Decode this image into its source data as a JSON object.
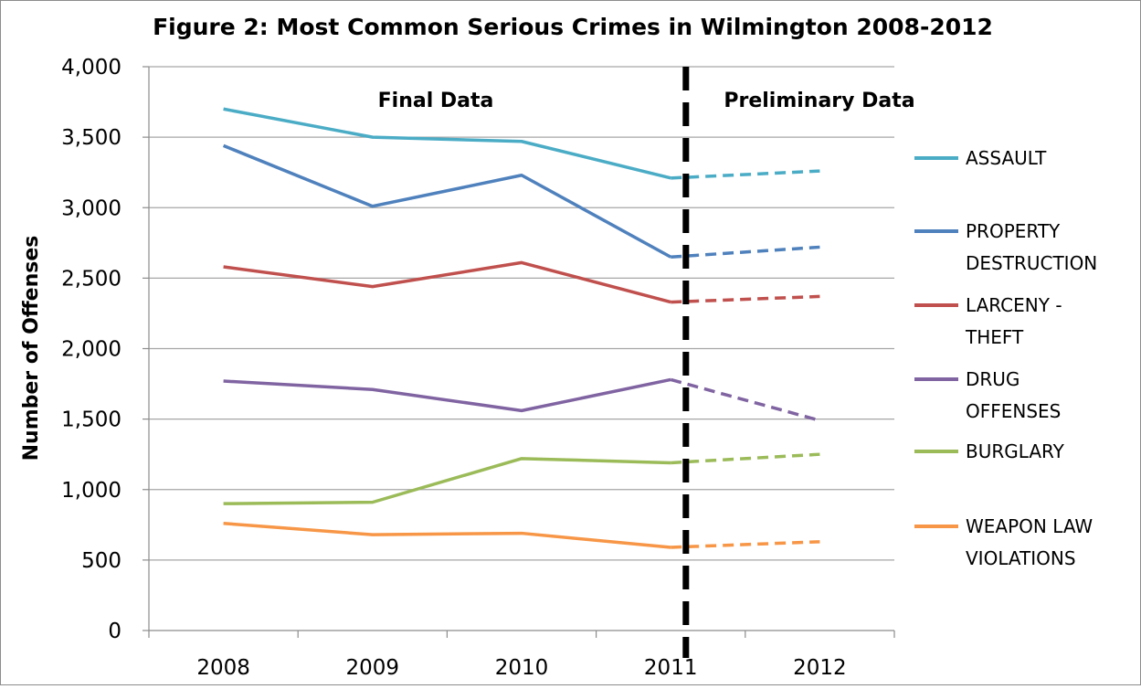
{
  "chart_data": {
    "type": "line",
    "title": "Figure 2: Most Common Serious Crimes in Wilmington 2008-2012",
    "xlabel": "",
    "ylabel": "Number of Offenses",
    "categories": [
      "2008",
      "2009",
      "2010",
      "2011",
      "2012"
    ],
    "ylim": [
      0,
      4000
    ],
    "yticks": [
      0,
      500,
      1000,
      1500,
      2000,
      2500,
      3000,
      3500,
      4000
    ],
    "ytick_labels": [
      "0",
      "500",
      "1,000",
      "1,500",
      "2,000",
      "2,500",
      "3,000",
      "3,500",
      "4,000"
    ],
    "grid": true,
    "legend_position": "right",
    "annotations": {
      "final_label": "Final Data",
      "preliminary_label": "Preliminary Data",
      "divider_between": [
        "2011",
        "2012"
      ]
    },
    "series": [
      {
        "name": "ASSAULT",
        "legend_lines": [
          "ASSAULT"
        ],
        "color": "#4bacc6",
        "values": [
          3700,
          3500,
          3470,
          3210,
          3260
        ]
      },
      {
        "name": "PROPERTY DESTRUCTION",
        "legend_lines": [
          "PROPERTY",
          "DESTRUCTION"
        ],
        "color": "#4f81bd",
        "values": [
          3440,
          3010,
          3230,
          2650,
          2720
        ]
      },
      {
        "name": "LARCENY - THEFT",
        "legend_lines": [
          "LARCENY -",
          "THEFT"
        ],
        "color": "#c0504d",
        "values": [
          2580,
          2440,
          2610,
          2330,
          2370
        ]
      },
      {
        "name": "DRUG OFFENSES",
        "legend_lines": [
          "DRUG",
          "OFFENSES"
        ],
        "color": "#8064a2",
        "values": [
          1770,
          1710,
          1560,
          1780,
          1490
        ]
      },
      {
        "name": "BURGLARY",
        "legend_lines": [
          "BURGLARY"
        ],
        "color": "#9bbb59",
        "values": [
          900,
          910,
          1220,
          1190,
          1250
        ]
      },
      {
        "name": "WEAPON LAW VIOLATIONS",
        "legend_lines": [
          "WEAPON LAW",
          "VIOLATIONS"
        ],
        "color": "#f79646",
        "values": [
          760,
          680,
          690,
          590,
          630
        ]
      }
    ]
  }
}
